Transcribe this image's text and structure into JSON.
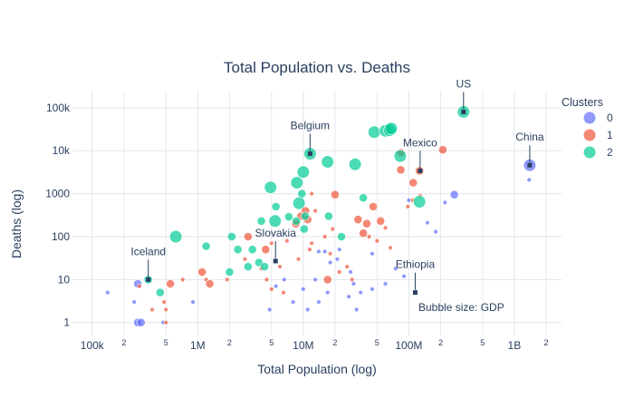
{
  "chart_data": {
    "type": "scatter",
    "title": "Total Population vs. Deaths",
    "xlabel": "Total Population (log)",
    "ylabel": "Deaths (log)",
    "x_scale": "log",
    "y_scale": "log",
    "xlim": [
      65000,
      2800000000
    ],
    "ylim": [
      0.5,
      250000
    ],
    "grid": true,
    "x_ticks": [
      {
        "v": 100000,
        "label": "100k",
        "major": true
      },
      {
        "v": 200000,
        "label": "2",
        "major": false
      },
      {
        "v": 500000,
        "label": "5",
        "major": false
      },
      {
        "v": 1000000,
        "label": "1M",
        "major": true
      },
      {
        "v": 2000000,
        "label": "2",
        "major": false
      },
      {
        "v": 5000000,
        "label": "5",
        "major": false
      },
      {
        "v": 10000000,
        "label": "10M",
        "major": true
      },
      {
        "v": 20000000,
        "label": "2",
        "major": false
      },
      {
        "v": 50000000,
        "label": "5",
        "major": false
      },
      {
        "v": 100000000,
        "label": "100M",
        "major": true
      },
      {
        "v": 200000000,
        "label": "2",
        "major": false
      },
      {
        "v": 500000000,
        "label": "5",
        "major": false
      },
      {
        "v": 1000000000,
        "label": "1B",
        "major": true
      },
      {
        "v": 2000000000,
        "label": "2",
        "major": false
      }
    ],
    "y_ticks": [
      {
        "v": 1,
        "label": "1"
      },
      {
        "v": 10,
        "label": "10"
      },
      {
        "v": 100,
        "label": "100"
      },
      {
        "v": 1000,
        "label": "1000"
      },
      {
        "v": 10000,
        "label": "10k"
      },
      {
        "v": 100000,
        "label": "100k"
      }
    ],
    "legend": {
      "title": "Clusters",
      "position": "top-right"
    },
    "note": "Bubble size: GDP",
    "series": [
      {
        "name": "0",
        "color": "#636efa",
        "points": [
          [
            140000,
            5,
            1
          ],
          [
            250000,
            3,
            1
          ],
          [
            270000,
            8,
            2
          ],
          [
            270000,
            1,
            2
          ],
          [
            290000,
            1,
            2
          ],
          [
            470000,
            1,
            1
          ],
          [
            900000,
            3,
            1
          ],
          [
            4800000,
            2,
            1
          ],
          [
            5500000,
            7,
            1
          ],
          [
            6600000,
            10,
            1
          ],
          [
            8000000,
            3,
            1
          ],
          [
            10000000,
            6,
            1
          ],
          [
            11000000,
            2,
            1
          ],
          [
            13000000,
            10,
            1
          ],
          [
            14000000,
            3,
            1
          ],
          [
            14000000,
            45,
            1
          ],
          [
            17000000,
            5,
            1
          ],
          [
            18000000,
            25,
            1
          ],
          [
            21000000,
            30,
            1
          ],
          [
            27000000,
            4,
            1
          ],
          [
            28000000,
            15,
            1
          ],
          [
            30000000,
            8,
            1
          ],
          [
            32000000,
            2,
            1
          ],
          [
            35000000,
            5,
            1
          ],
          [
            45000000,
            6,
            1
          ],
          [
            60000000,
            8,
            1
          ],
          [
            75000000,
            18,
            1
          ],
          [
            90000000,
            12,
            1
          ],
          [
            100000000,
            700,
            1
          ],
          [
            150000000,
            210,
            1
          ],
          [
            180000000,
            130,
            1
          ],
          [
            220000000,
            620,
            1
          ],
          [
            270000000,
            950,
            2
          ],
          [
            1380000000,
            2100,
            1
          ],
          [
            1400000000,
            4600,
            3
          ],
          [
            45000000,
            40,
            1
          ],
          [
            22000000,
            50,
            1
          ],
          [
            16000000,
            45,
            1
          ]
        ]
      },
      {
        "name": "1",
        "color": "#ef553b",
        "points": [
          [
            280000,
            7,
            1
          ],
          [
            370000,
            2,
            1
          ],
          [
            480000,
            3,
            1
          ],
          [
            500000,
            1,
            1
          ],
          [
            500000,
            2,
            1
          ],
          [
            550000,
            8,
            2
          ],
          [
            720000,
            10,
            1
          ],
          [
            1100000,
            15,
            2
          ],
          [
            1200000,
            10,
            1
          ],
          [
            1300000,
            8,
            2
          ],
          [
            1900000,
            10,
            1
          ],
          [
            2800000,
            30,
            1
          ],
          [
            3000000,
            100,
            2
          ],
          [
            4000000,
            18,
            1
          ],
          [
            4400000,
            50,
            2
          ],
          [
            4500000,
            10,
            1
          ],
          [
            5000000,
            6,
            1
          ],
          [
            5000000,
            70,
            1
          ],
          [
            6000000,
            20,
            1
          ],
          [
            6500000,
            5,
            1
          ],
          [
            7000000,
            80,
            1
          ],
          [
            8500000,
            200,
            2
          ],
          [
            9000000,
            30,
            1
          ],
          [
            9500000,
            300,
            2
          ],
          [
            10500000,
            400,
            2
          ],
          [
            11000000,
            250,
            2
          ],
          [
            11500000,
            50,
            1
          ],
          [
            12000000,
            70,
            1
          ],
          [
            12000000,
            1000,
            1
          ],
          [
            13000000,
            400,
            1
          ],
          [
            16000000,
            100,
            1
          ],
          [
            17000000,
            10,
            2
          ],
          [
            18000000,
            40,
            1
          ],
          [
            19000000,
            150,
            1
          ],
          [
            20000000,
            950,
            2
          ],
          [
            22000000,
            15,
            1
          ],
          [
            26000000,
            20,
            1
          ],
          [
            29000000,
            10,
            1
          ],
          [
            33000000,
            250,
            2
          ],
          [
            37000000,
            120,
            2
          ],
          [
            40000000,
            200,
            2
          ],
          [
            42000000,
            100,
            1
          ],
          [
            46000000,
            500,
            2
          ],
          [
            50000000,
            80,
            1
          ],
          [
            54000000,
            230,
            2
          ],
          [
            60000000,
            160,
            1
          ],
          [
            67000000,
            55,
            1
          ],
          [
            84000000,
            3600,
            2
          ],
          [
            84000000,
            9000,
            2
          ],
          [
            98000000,
            500,
            1
          ],
          [
            109000000,
            700,
            1
          ],
          [
            110000000,
            1800,
            2
          ],
          [
            126000000,
            3400,
            2
          ],
          [
            210000000,
            10500,
            2
          ],
          [
            128000000,
            900,
            1
          ]
        ]
      },
      {
        "name": "2",
        "color": "#00cc96",
        "points": [
          [
            340000,
            10,
            2
          ],
          [
            440000,
            5,
            2
          ],
          [
            620000,
            100,
            3
          ],
          [
            1200000,
            60,
            2
          ],
          [
            2000000,
            15,
            2
          ],
          [
            2100000,
            100,
            2
          ],
          [
            2400000,
            50,
            2
          ],
          [
            3000000,
            20,
            2
          ],
          [
            3300000,
            50,
            2
          ],
          [
            3800000,
            25,
            2
          ],
          [
            4000000,
            230,
            2
          ],
          [
            4300000,
            20,
            2
          ],
          [
            4900000,
            1400,
            3
          ],
          [
            5400000,
            230,
            3
          ],
          [
            5500000,
            500,
            2
          ],
          [
            7300000,
            290,
            2
          ],
          [
            8600000,
            230,
            2
          ],
          [
            8700000,
            1800,
            3
          ],
          [
            9100000,
            600,
            3
          ],
          [
            9700000,
            1000,
            2
          ],
          [
            10000000,
            3200,
            3
          ],
          [
            10200000,
            150,
            2
          ],
          [
            10400000,
            300,
            2
          ],
          [
            11600000,
            8500,
            3
          ],
          [
            17000000,
            5500,
            3
          ],
          [
            17400000,
            300,
            2
          ],
          [
            23000000,
            100,
            2
          ],
          [
            31000000,
            4800,
            3
          ],
          [
            37000000,
            800,
            2
          ],
          [
            47000000,
            27000,
            3
          ],
          [
            60000000,
            29000,
            3
          ],
          [
            66000000,
            30000,
            3
          ],
          [
            68000000,
            33000,
            3
          ],
          [
            83000000,
            7500,
            3
          ],
          [
            126000000,
            650,
            3
          ],
          [
            330000000,
            80000,
            3
          ]
        ]
      }
    ],
    "annotations": [
      {
        "text": "US",
        "x": 330000000,
        "y": 80000
      },
      {
        "text": "Belgium",
        "x": 11600000,
        "y": 8500
      },
      {
        "text": "Mexico",
        "x": 128000000,
        "y": 3400
      },
      {
        "text": "China",
        "x": 1400000000,
        "y": 4600
      },
      {
        "text": "Iceland",
        "x": 340000,
        "y": 10
      },
      {
        "text": "Slovakia",
        "x": 5460000,
        "y": 27
      },
      {
        "text": "Ethiopia",
        "x": 115000000,
        "y": 5
      }
    ]
  }
}
